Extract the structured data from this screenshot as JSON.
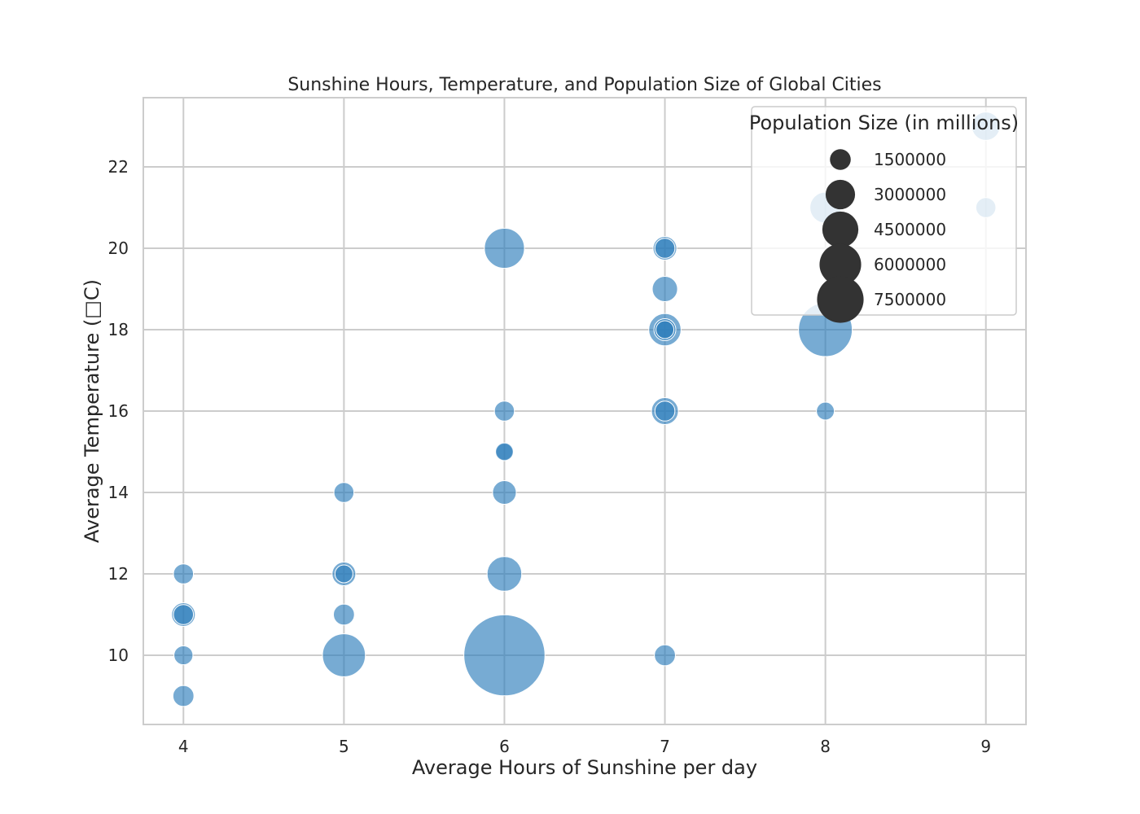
{
  "chart_data": {
    "type": "scatter",
    "title": "Sunshine Hours, Temperature, and Population Size of Global Cities",
    "xlabel": "Average Hours of Sunshine per day",
    "ylabel": "Average Temperature (□C)",
    "xlim": [
      3.75,
      9.25
    ],
    "ylim": [
      8.3,
      23.7
    ],
    "x_ticks": [
      4,
      5,
      6,
      7,
      8,
      9
    ],
    "y_ticks": [
      10,
      12,
      14,
      16,
      18,
      20,
      22
    ],
    "grid": true,
    "marker_color": "#2e7ebc",
    "legend": {
      "title": "Population Size (in millions)",
      "placement": "top-right",
      "entries": [
        {
          "label": "1500000",
          "size": 1500000
        },
        {
          "label": "3000000",
          "size": 3000000
        },
        {
          "label": "4500000",
          "size": 4500000
        },
        {
          "label": "6000000",
          "size": 6000000
        },
        {
          "label": "7500000",
          "size": 7500000
        }
      ]
    },
    "points": [
      {
        "x": 4,
        "y": 12,
        "size": 500000
      },
      {
        "x": 4,
        "y": 11,
        "size": 700000
      },
      {
        "x": 4,
        "y": 11,
        "size": 500000
      },
      {
        "x": 4,
        "y": 10,
        "size": 450000
      },
      {
        "x": 4,
        "y": 9,
        "size": 550000
      },
      {
        "x": 5,
        "y": 14,
        "size": 500000
      },
      {
        "x": 5,
        "y": 12,
        "size": 700000
      },
      {
        "x": 5,
        "y": 12,
        "size": 400000
      },
      {
        "x": 5,
        "y": 11,
        "size": 550000
      },
      {
        "x": 5,
        "y": 10,
        "size": 2300000
      },
      {
        "x": 6,
        "y": 20,
        "size": 2000000
      },
      {
        "x": 6,
        "y": 16,
        "size": 500000
      },
      {
        "x": 6,
        "y": 15,
        "size": 350000
      },
      {
        "x": 6,
        "y": 15,
        "size": 400000
      },
      {
        "x": 6,
        "y": 14,
        "size": 700000
      },
      {
        "x": 6,
        "y": 12,
        "size": 1500000
      },
      {
        "x": 6,
        "y": 10,
        "size": 8200000
      },
      {
        "x": 7,
        "y": 20,
        "size": 700000
      },
      {
        "x": 7,
        "y": 20,
        "size": 500000
      },
      {
        "x": 7,
        "y": 19,
        "size": 800000
      },
      {
        "x": 7,
        "y": 18,
        "size": 1300000
      },
      {
        "x": 7,
        "y": 18,
        "size": 600000
      },
      {
        "x": 7,
        "y": 18,
        "size": 400000
      },
      {
        "x": 7,
        "y": 16,
        "size": 900000
      },
      {
        "x": 7,
        "y": 16,
        "size": 500000
      },
      {
        "x": 7,
        "y": 10,
        "size": 550000
      },
      {
        "x": 8,
        "y": 21,
        "size": 1200000
      },
      {
        "x": 8,
        "y": 18,
        "size": 3600000
      },
      {
        "x": 8,
        "y": 16,
        "size": 400000
      },
      {
        "x": 9,
        "y": 23,
        "size": 1000000
      },
      {
        "x": 9,
        "y": 21,
        "size": 500000
      }
    ]
  }
}
